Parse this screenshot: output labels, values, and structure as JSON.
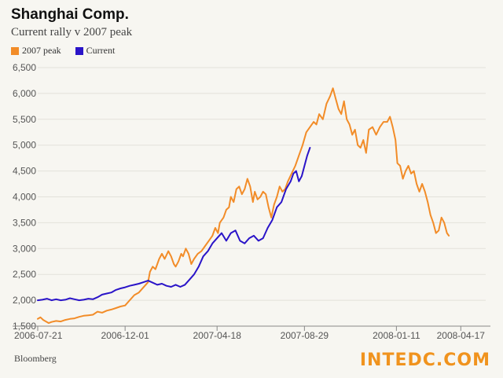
{
  "chart_data": {
    "type": "line",
    "title": "Shanghai Comp.",
    "subtitle": "Current rally v 2007 peak",
    "xlabel": "",
    "ylabel": "",
    "ylim": [
      1500,
      6500
    ],
    "y_ticks": [
      "6,500",
      "6,000",
      "5,500",
      "5,000",
      "4,500",
      "4,000",
      "3,500",
      "3,000",
      "2,500",
      "2,000",
      "1,500"
    ],
    "y_tick_values": [
      6500,
      6000,
      5500,
      5000,
      4500,
      4000,
      3500,
      3000,
      2500,
      2000,
      1500
    ],
    "x_tick_labels": [
      "2006-07-21",
      "2006-12-01",
      "2007-04-18",
      "2007-08-29",
      "2008-01-11",
      "2008-04-17"
    ],
    "x_tick_values": [
      0,
      95,
      195,
      290,
      390,
      460
    ],
    "xlim": [
      0,
      470
    ],
    "legend": [
      {
        "name": "2007 peak",
        "color": "#f28c28"
      },
      {
        "name": "Current",
        "color": "#2a14c8"
      }
    ],
    "series": [
      {
        "name": "2007 peak",
        "color": "#f28c28",
        "points": [
          [
            0,
            1640
          ],
          [
            3,
            1670
          ],
          [
            6,
            1620
          ],
          [
            9,
            1590
          ],
          [
            12,
            1560
          ],
          [
            15,
            1580
          ],
          [
            20,
            1600
          ],
          [
            25,
            1590
          ],
          [
            30,
            1620
          ],
          [
            35,
            1640
          ],
          [
            40,
            1650
          ],
          [
            45,
            1680
          ],
          [
            50,
            1700
          ],
          [
            55,
            1710
          ],
          [
            60,
            1720
          ],
          [
            65,
            1780
          ],
          [
            70,
            1760
          ],
          [
            75,
            1800
          ],
          [
            80,
            1820
          ],
          [
            85,
            1850
          ],
          [
            90,
            1880
          ],
          [
            95,
            1900
          ],
          [
            100,
            2000
          ],
          [
            105,
            2100
          ],
          [
            110,
            2150
          ],
          [
            115,
            2250
          ],
          [
            120,
            2350
          ],
          [
            122,
            2550
          ],
          [
            125,
            2650
          ],
          [
            128,
            2600
          ],
          [
            132,
            2800
          ],
          [
            135,
            2900
          ],
          [
            138,
            2800
          ],
          [
            142,
            2950
          ],
          [
            145,
            2850
          ],
          [
            148,
            2700
          ],
          [
            150,
            2650
          ],
          [
            153,
            2750
          ],
          [
            156,
            2900
          ],
          [
            158,
            2850
          ],
          [
            161,
            3000
          ],
          [
            164,
            2900
          ],
          [
            167,
            2700
          ],
          [
            170,
            2800
          ],
          [
            174,
            2900
          ],
          [
            178,
            2950
          ],
          [
            182,
            3050
          ],
          [
            186,
            3150
          ],
          [
            190,
            3250
          ],
          [
            193,
            3400
          ],
          [
            196,
            3300
          ],
          [
            198,
            3500
          ],
          [
            202,
            3600
          ],
          [
            205,
            3750
          ],
          [
            208,
            3800
          ],
          [
            210,
            4000
          ],
          [
            213,
            3900
          ],
          [
            216,
            4150
          ],
          [
            219,
            4200
          ],
          [
            222,
            4050
          ],
          [
            225,
            4150
          ],
          [
            228,
            4350
          ],
          [
            231,
            4200
          ],
          [
            234,
            3900
          ],
          [
            236,
            4100
          ],
          [
            239,
            3950
          ],
          [
            242,
            4000
          ],
          [
            245,
            4100
          ],
          [
            248,
            4050
          ],
          [
            251,
            3800
          ],
          [
            254,
            3600
          ],
          [
            257,
            3850
          ],
          [
            260,
            4000
          ],
          [
            263,
            4200
          ],
          [
            266,
            4100
          ],
          [
            269,
            4150
          ],
          [
            272,
            4300
          ],
          [
            276,
            4450
          ],
          [
            280,
            4600
          ],
          [
            284,
            4800
          ],
          [
            288,
            5000
          ],
          [
            292,
            5250
          ],
          [
            296,
            5350
          ],
          [
            300,
            5450
          ],
          [
            303,
            5400
          ],
          [
            306,
            5600
          ],
          [
            310,
            5500
          ],
          [
            314,
            5800
          ],
          [
            318,
            5950
          ],
          [
            321,
            6100
          ],
          [
            324,
            5900
          ],
          [
            327,
            5700
          ],
          [
            330,
            5600
          ],
          [
            333,
            5850
          ],
          [
            336,
            5500
          ],
          [
            339,
            5400
          ],
          [
            342,
            5200
          ],
          [
            345,
            5300
          ],
          [
            348,
            5000
          ],
          [
            351,
            4950
          ],
          [
            354,
            5100
          ],
          [
            357,
            4850
          ],
          [
            360,
            5300
          ],
          [
            364,
            5350
          ],
          [
            368,
            5200
          ],
          [
            372,
            5350
          ],
          [
            376,
            5450
          ],
          [
            380,
            5450
          ],
          [
            383,
            5550
          ],
          [
            386,
            5350
          ],
          [
            389,
            5100
          ],
          [
            391,
            4650
          ],
          [
            394,
            4600
          ],
          [
            397,
            4350
          ],
          [
            400,
            4500
          ],
          [
            403,
            4600
          ],
          [
            406,
            4450
          ],
          [
            409,
            4500
          ],
          [
            412,
            4250
          ],
          [
            415,
            4100
          ],
          [
            418,
            4250
          ],
          [
            421,
            4100
          ],
          [
            424,
            3900
          ],
          [
            427,
            3650
          ],
          [
            430,
            3500
          ],
          [
            433,
            3300
          ],
          [
            436,
            3350
          ],
          [
            439,
            3600
          ],
          [
            442,
            3500
          ],
          [
            445,
            3300
          ],
          [
            447,
            3250
          ]
        ]
      },
      {
        "name": "Current",
        "color": "#2a14c8",
        "points": [
          [
            0,
            2000
          ],
          [
            5,
            2010
          ],
          [
            10,
            2030
          ],
          [
            15,
            2000
          ],
          [
            20,
            2020
          ],
          [
            25,
            2000
          ],
          [
            30,
            2010
          ],
          [
            35,
            2040
          ],
          [
            40,
            2020
          ],
          [
            45,
            2000
          ],
          [
            50,
            2010
          ],
          [
            55,
            2030
          ],
          [
            60,
            2020
          ],
          [
            65,
            2060
          ],
          [
            70,
            2110
          ],
          [
            75,
            2130
          ],
          [
            80,
            2150
          ],
          [
            85,
            2200
          ],
          [
            90,
            2230
          ],
          [
            95,
            2250
          ],
          [
            100,
            2280
          ],
          [
            105,
            2300
          ],
          [
            110,
            2320
          ],
          [
            115,
            2350
          ],
          [
            120,
            2380
          ],
          [
            125,
            2340
          ],
          [
            130,
            2300
          ],
          [
            135,
            2320
          ],
          [
            140,
            2280
          ],
          [
            145,
            2260
          ],
          [
            150,
            2300
          ],
          [
            155,
            2260
          ],
          [
            160,
            2300
          ],
          [
            165,
            2400
          ],
          [
            170,
            2500
          ],
          [
            175,
            2650
          ],
          [
            180,
            2850
          ],
          [
            185,
            2950
          ],
          [
            190,
            3100
          ],
          [
            195,
            3200
          ],
          [
            200,
            3300
          ],
          [
            205,
            3150
          ],
          [
            210,
            3300
          ],
          [
            215,
            3350
          ],
          [
            220,
            3150
          ],
          [
            225,
            3100
          ],
          [
            230,
            3200
          ],
          [
            235,
            3250
          ],
          [
            240,
            3150
          ],
          [
            245,
            3200
          ],
          [
            250,
            3400
          ],
          [
            255,
            3550
          ],
          [
            260,
            3800
          ],
          [
            265,
            3900
          ],
          [
            270,
            4150
          ],
          [
            275,
            4300
          ],
          [
            278,
            4450
          ],
          [
            281,
            4500
          ],
          [
            284,
            4300
          ],
          [
            287,
            4400
          ],
          [
            290,
            4600
          ],
          [
            293,
            4800
          ],
          [
            296,
            4950
          ]
        ]
      }
    ]
  },
  "source": "Bloomberg",
  "watermark": "INTEDC.COM"
}
